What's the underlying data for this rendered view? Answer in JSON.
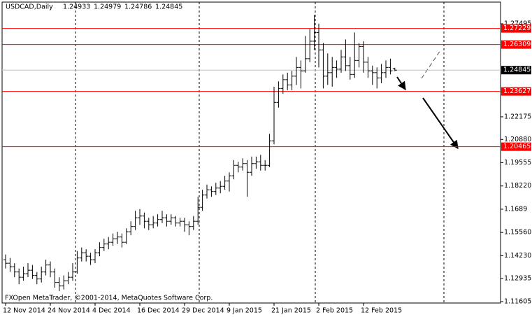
{
  "chart_data": {
    "type": "ohlc",
    "title": "USDCAD,Daily",
    "footer": "FXOpen MetaTrader, ©2001-2014, MetaQuotes Software Corp.",
    "color": "#000000",
    "level_color": "#ff0000",
    "categories": [
      "12 Nov 2014",
      null,
      null,
      null,
      null,
      null,
      null,
      null,
      null,
      null,
      "24 Nov 2014",
      null,
      null,
      null,
      null,
      null,
      null,
      null,
      null,
      null,
      "4 Dec 2014",
      null,
      null,
      null,
      null,
      null,
      null,
      null,
      null,
      null,
      "16 Dec 2014",
      null,
      null,
      null,
      null,
      null,
      null,
      null,
      null,
      null,
      "29 Dec 2014",
      null,
      null,
      null,
      null,
      null,
      null,
      null,
      null,
      null,
      "9 Jan 2015",
      null,
      null,
      null,
      null,
      null,
      null,
      null,
      null,
      null,
      "21 Jan 2015",
      null,
      null,
      null,
      null,
      null,
      null,
      null,
      null,
      null,
      "2 Feb 2015",
      null,
      null,
      null,
      null,
      null,
      null,
      null,
      null,
      null,
      "12 Feb 2015",
      null,
      null,
      null,
      null,
      null,
      null,
      null
    ],
    "open": [
      1.14,
      1.138,
      1.136,
      1.133,
      1.13,
      1.132,
      1.134,
      1.131,
      1.129,
      1.133,
      1.137,
      1.133,
      1.127,
      1.125,
      1.128,
      1.13,
      1.133,
      1.141,
      1.144,
      1.142,
      1.14,
      1.144,
      1.147,
      1.149,
      1.15,
      1.152,
      1.153,
      1.15,
      1.156,
      1.159,
      1.164,
      1.165,
      1.162,
      1.16,
      1.161,
      1.163,
      1.164,
      1.162,
      1.164,
      1.161,
      1.162,
      1.16,
      1.159,
      1.162,
      1.17,
      1.177,
      1.18,
      1.179,
      1.181,
      1.182,
      1.185,
      1.188,
      1.194,
      1.193,
      1.195,
      1.19,
      1.195,
      1.196,
      1.194,
      1.194,
      1.208,
      1.23,
      1.238,
      1.243,
      1.24,
      1.245,
      1.25,
      1.248,
      1.255,
      1.265,
      1.27,
      1.26,
      1.245,
      1.247,
      1.25,
      1.249,
      1.256,
      1.251,
      1.246,
      1.254,
      1.262,
      1.253,
      1.248,
      1.247,
      1.244,
      1.247,
      1.25,
      1.24933
    ],
    "high": [
      1.143,
      1.141,
      1.138,
      1.135,
      1.136,
      1.138,
      1.137,
      1.133,
      1.136,
      1.14,
      1.139,
      1.135,
      1.13,
      1.131,
      1.133,
      1.138,
      1.145,
      1.147,
      1.146,
      1.144,
      1.146,
      1.15,
      1.152,
      1.153,
      1.155,
      1.156,
      1.155,
      1.158,
      1.162,
      1.168,
      1.169,
      1.167,
      1.164,
      1.165,
      1.166,
      1.168,
      1.166,
      1.166,
      1.165,
      1.164,
      1.164,
      1.162,
      1.165,
      1.176,
      1.18,
      1.183,
      1.182,
      1.184,
      1.185,
      1.188,
      1.19,
      1.197,
      1.196,
      1.198,
      1.197,
      1.199,
      1.199,
      1.2,
      1.197,
      1.212,
      1.239,
      1.242,
      1.246,
      1.247,
      1.248,
      1.256,
      1.254,
      1.268,
      1.272,
      1.28,
      1.275,
      1.264,
      1.258,
      1.256,
      1.254,
      1.26,
      1.266,
      1.256,
      1.27,
      1.264,
      1.265,
      1.256,
      1.251,
      1.25,
      1.252,
      1.254,
      1.255,
      1.24979
    ],
    "low": [
      1.135,
      1.133,
      1.13,
      1.126,
      1.128,
      1.13,
      1.129,
      1.126,
      1.127,
      1.131,
      1.13,
      1.124,
      1.122,
      1.123,
      1.126,
      1.128,
      1.132,
      1.139,
      1.139,
      1.137,
      1.138,
      1.142,
      1.145,
      1.146,
      1.148,
      1.149,
      1.147,
      1.149,
      1.154,
      1.157,
      1.16,
      1.158,
      1.157,
      1.158,
      1.159,
      1.161,
      1.159,
      1.16,
      1.159,
      1.159,
      1.156,
      1.154,
      1.157,
      1.16,
      1.168,
      1.175,
      1.176,
      1.177,
      1.178,
      1.18,
      1.179,
      1.186,
      1.19,
      1.191,
      1.176,
      1.188,
      1.192,
      1.191,
      1.191,
      1.193,
      1.206,
      1.227,
      1.235,
      1.237,
      1.237,
      1.24,
      1.238,
      1.247,
      1.253,
      1.26,
      1.25,
      1.238,
      1.24,
      1.239,
      1.244,
      1.247,
      1.248,
      1.243,
      1.244,
      1.25,
      1.247,
      1.244,
      1.24,
      1.238,
      1.241,
      1.244,
      1.246,
      1.24786
    ],
    "close": [
      1.138,
      1.136,
      1.133,
      1.13,
      1.132,
      1.134,
      1.131,
      1.129,
      1.133,
      1.137,
      1.133,
      1.127,
      1.125,
      1.128,
      1.13,
      1.133,
      1.141,
      1.144,
      1.142,
      1.14,
      1.144,
      1.147,
      1.149,
      1.15,
      1.152,
      1.153,
      1.15,
      1.156,
      1.159,
      1.164,
      1.165,
      1.162,
      1.16,
      1.161,
      1.163,
      1.164,
      1.162,
      1.164,
      1.161,
      1.162,
      1.16,
      1.159,
      1.162,
      1.17,
      1.177,
      1.18,
      1.179,
      1.181,
      1.182,
      1.185,
      1.188,
      1.194,
      1.193,
      1.195,
      1.19,
      1.195,
      1.196,
      1.194,
      1.194,
      1.208,
      1.23,
      1.238,
      1.243,
      1.24,
      1.245,
      1.25,
      1.248,
      1.255,
      1.265,
      1.27,
      1.26,
      1.245,
      1.247,
      1.25,
      1.249,
      1.256,
      1.251,
      1.246,
      1.254,
      1.262,
      1.253,
      1.248,
      1.247,
      1.244,
      1.247,
      1.25,
      1.248,
      1.24845
    ],
    "levels": [
      1.27229,
      1.26309,
      1.23627,
      1.20465
    ],
    "ylim": [
      1.11525,
      1.28736
    ],
    "yticks": [
      1.27495,
      1.22175,
      {
        "value": 1.2088,
        "label": "1.20880"
      },
      1.19555,
      {
        "value": 1.1822,
        "label": "1.18220"
      },
      1.1689,
      {
        "value": 1.1556,
        "label": "1.15560"
      },
      {
        "value": 1.1423,
        "label": "1.14230"
      },
      1.12935,
      1.11605
    ]
  }
}
